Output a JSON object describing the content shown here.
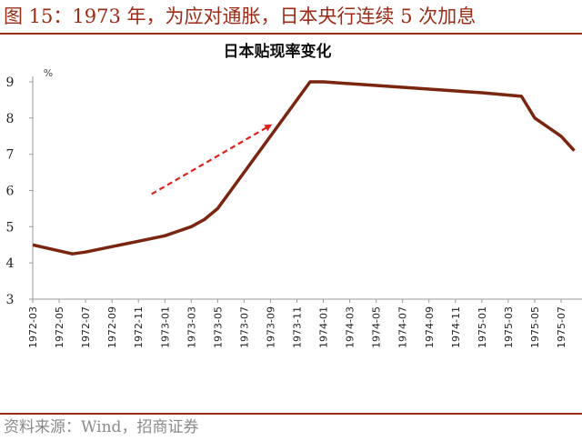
{
  "figure": {
    "title": "图 15：1973 年，为应对通胀，日本央行连续 5 次加息",
    "source": "资料来源：Wind，招商证券"
  },
  "colors": {
    "accent": "#9b2c17",
    "line": "#7a2510",
    "arrow": "#e0201a",
    "axis": "#999999",
    "text": "#222222"
  },
  "chart_data": {
    "type": "line",
    "title": "日本贴现率变化",
    "unit_label": "%",
    "xlabel": "",
    "ylabel": "",
    "ylim": [
      3,
      9
    ],
    "yticks": [
      3,
      4,
      5,
      6,
      7,
      8,
      9
    ],
    "grid": false,
    "legend": "none",
    "categories": [
      "1972-03",
      "1972-05",
      "1972-07",
      "1972-09",
      "1972-11",
      "1973-01",
      "1973-03",
      "1973-05",
      "1973-07",
      "1973-09",
      "1973-11",
      "1974-01",
      "1974-03",
      "1974-05",
      "1974-07",
      "1974-09",
      "1974-11",
      "1975-01",
      "1975-03",
      "1975-05",
      "1975-07"
    ],
    "series": [
      {
        "x": [
          "1972-03",
          "1972-06",
          "1972-07",
          "1972-09",
          "1972-11",
          "1973-01",
          "1973-03",
          "1973-04",
          "1973-05",
          "1973-06",
          "1973-12",
          "1974-01",
          "1974-03",
          "1974-05",
          "1974-07",
          "1974-09",
          "1974-11",
          "1975-01",
          "1975-04",
          "1975-05",
          "1975-07",
          "1975-08"
        ],
        "values": [
          4.5,
          4.25,
          4.3,
          4.45,
          4.6,
          4.75,
          5.0,
          5.2,
          5.5,
          6.0,
          9.0,
          9.0,
          8.95,
          8.9,
          8.85,
          8.8,
          8.75,
          8.7,
          8.6,
          8.0,
          7.5,
          7.1
        ]
      }
    ],
    "annotations": [
      {
        "type": "arrow",
        "style": "dashed",
        "from": [
          "1972-12",
          5.9
        ],
        "to": [
          "1973-09",
          7.8
        ]
      }
    ]
  }
}
